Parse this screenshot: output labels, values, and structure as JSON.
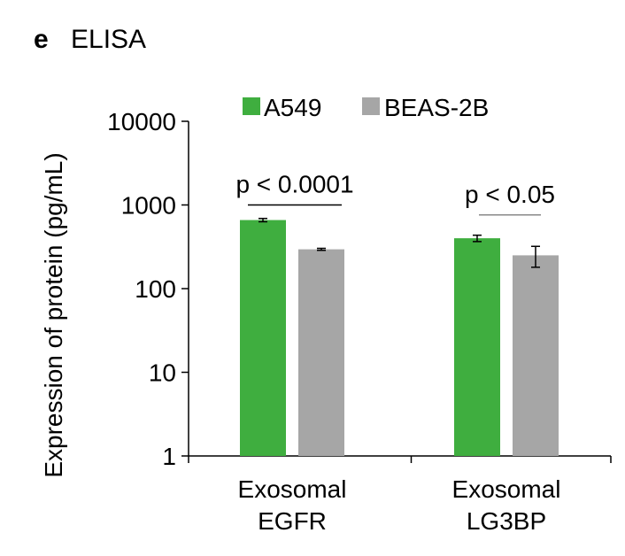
{
  "panel": {
    "letter": "e",
    "title": "ELISA"
  },
  "colors": {
    "A549": "#3fae3f",
    "BEAS-2B": "#a6a6a6",
    "axis": "#000000",
    "sig_line": "#000000"
  },
  "chart_data": {
    "type": "bar",
    "title": "ELISA",
    "ylabel": "Expression of protein (pg/mL)",
    "xlabel": "",
    "yscale": "log",
    "ylim": [
      1,
      10000
    ],
    "yticks": [
      1,
      10,
      100,
      1000,
      10000
    ],
    "ytick_labels": [
      "1",
      "10",
      "100",
      "1000",
      "10000"
    ],
    "categories": [
      {
        "line1": "Exosomal",
        "line2": "EGFR"
      },
      {
        "line1": "Exosomal",
        "line2": "LG3BP"
      }
    ],
    "series": [
      {
        "name": "A549",
        "values": [
          660,
          400
        ],
        "errors": [
          30,
          35
        ]
      },
      {
        "name": "BEAS-2B",
        "values": [
          295,
          250
        ],
        "errors": [
          8,
          70
        ]
      }
    ],
    "legend": {
      "position": "top"
    },
    "grid": false,
    "annotations": [
      {
        "text": "p < 0.0001",
        "category_index": 0,
        "y": 1000
      },
      {
        "text": "p < 0.05",
        "category_index": 1,
        "y": 760
      }
    ]
  }
}
